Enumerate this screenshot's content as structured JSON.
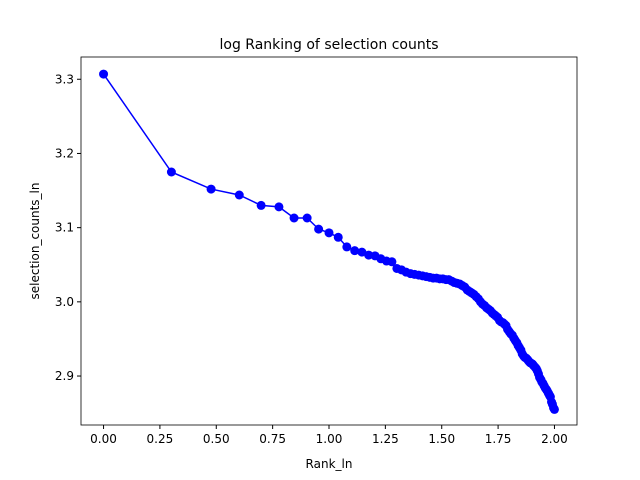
{
  "chart_data": {
    "type": "line",
    "title": "log Ranking of selection counts",
    "x_label": "Rank_ln",
    "y_label": "selection_counts_ln",
    "color": "#0000ff",
    "marker": "circle",
    "grid": false,
    "x": [
      0.0,
      0.301,
      0.477,
      0.602,
      0.699,
      0.778,
      0.845,
      0.903,
      0.954,
      1.0,
      1.041,
      1.079,
      1.114,
      1.146,
      1.176,
      1.204,
      1.23,
      1.255,
      1.279,
      1.301,
      1.322,
      1.342,
      1.362,
      1.38,
      1.398,
      1.415,
      1.431,
      1.447,
      1.462,
      1.477,
      1.491,
      1.505,
      1.519,
      1.531,
      1.544,
      1.556,
      1.568,
      1.58,
      1.591,
      1.602,
      1.613,
      1.623,
      1.633,
      1.643,
      1.653,
      1.663,
      1.672,
      1.681,
      1.69,
      1.699,
      1.708,
      1.716,
      1.724,
      1.732,
      1.74,
      1.748,
      1.756,
      1.763,
      1.771,
      1.778,
      1.785,
      1.792,
      1.799,
      1.806,
      1.813,
      1.82,
      1.826,
      1.833,
      1.839,
      1.845,
      1.851,
      1.857,
      1.863,
      1.869,
      1.875,
      1.881,
      1.886,
      1.892,
      1.898,
      1.903,
      1.908,
      1.914,
      1.919,
      1.924,
      1.929,
      1.934,
      1.94,
      1.944,
      1.949,
      1.954,
      1.959,
      1.964,
      1.968,
      1.973,
      1.978,
      1.982,
      1.987,
      1.991,
      1.996,
      2.0
    ],
    "values": [
      3.307,
      3.175,
      3.152,
      3.144,
      3.13,
      3.128,
      3.113,
      3.113,
      3.098,
      3.093,
      3.087,
      3.074,
      3.069,
      3.067,
      3.063,
      3.062,
      3.058,
      3.055,
      3.054,
      3.045,
      3.043,
      3.04,
      3.038,
      3.037,
      3.036,
      3.035,
      3.034,
      3.033,
      3.032,
      3.032,
      3.031,
      3.031,
      3.03,
      3.03,
      3.028,
      3.026,
      3.025,
      3.024,
      3.022,
      3.02,
      3.016,
      3.014,
      3.012,
      3.01,
      3.007,
      3.004,
      3.0,
      2.997,
      2.995,
      2.992,
      2.99,
      2.988,
      2.985,
      2.983,
      2.981,
      2.979,
      2.975,
      2.973,
      2.972,
      2.97,
      2.968,
      2.963,
      2.96,
      2.957,
      2.955,
      2.951,
      2.948,
      2.945,
      2.941,
      2.938,
      2.935,
      2.93,
      2.927,
      2.925,
      2.924,
      2.922,
      2.92,
      2.918,
      2.917,
      2.916,
      2.914,
      2.912,
      2.91,
      2.907,
      2.903,
      2.898,
      2.895,
      2.892,
      2.89,
      2.887,
      2.884,
      2.882,
      2.88,
      2.877,
      2.874,
      2.872,
      2.865,
      2.862,
      2.857,
      2.855
    ],
    "xlim": [
      -0.1,
      2.1
    ],
    "xticks": [
      {
        "value": 0,
        "label": "0.00"
      },
      0.25,
      {
        "value": 0.5,
        "label": "0.50"
      },
      0.75,
      {
        "value": 1,
        "label": "1.00"
      },
      1.25,
      {
        "value": 1.5,
        "label": "1.50"
      },
      1.75,
      {
        "value": 2,
        "label": "2.00"
      }
    ],
    "ylim": [
      2.834,
      3.33
    ],
    "yticks": [
      2.9,
      {
        "value": 3,
        "label": "3.0"
      },
      3.1,
      3.2,
      3.3
    ]
  }
}
